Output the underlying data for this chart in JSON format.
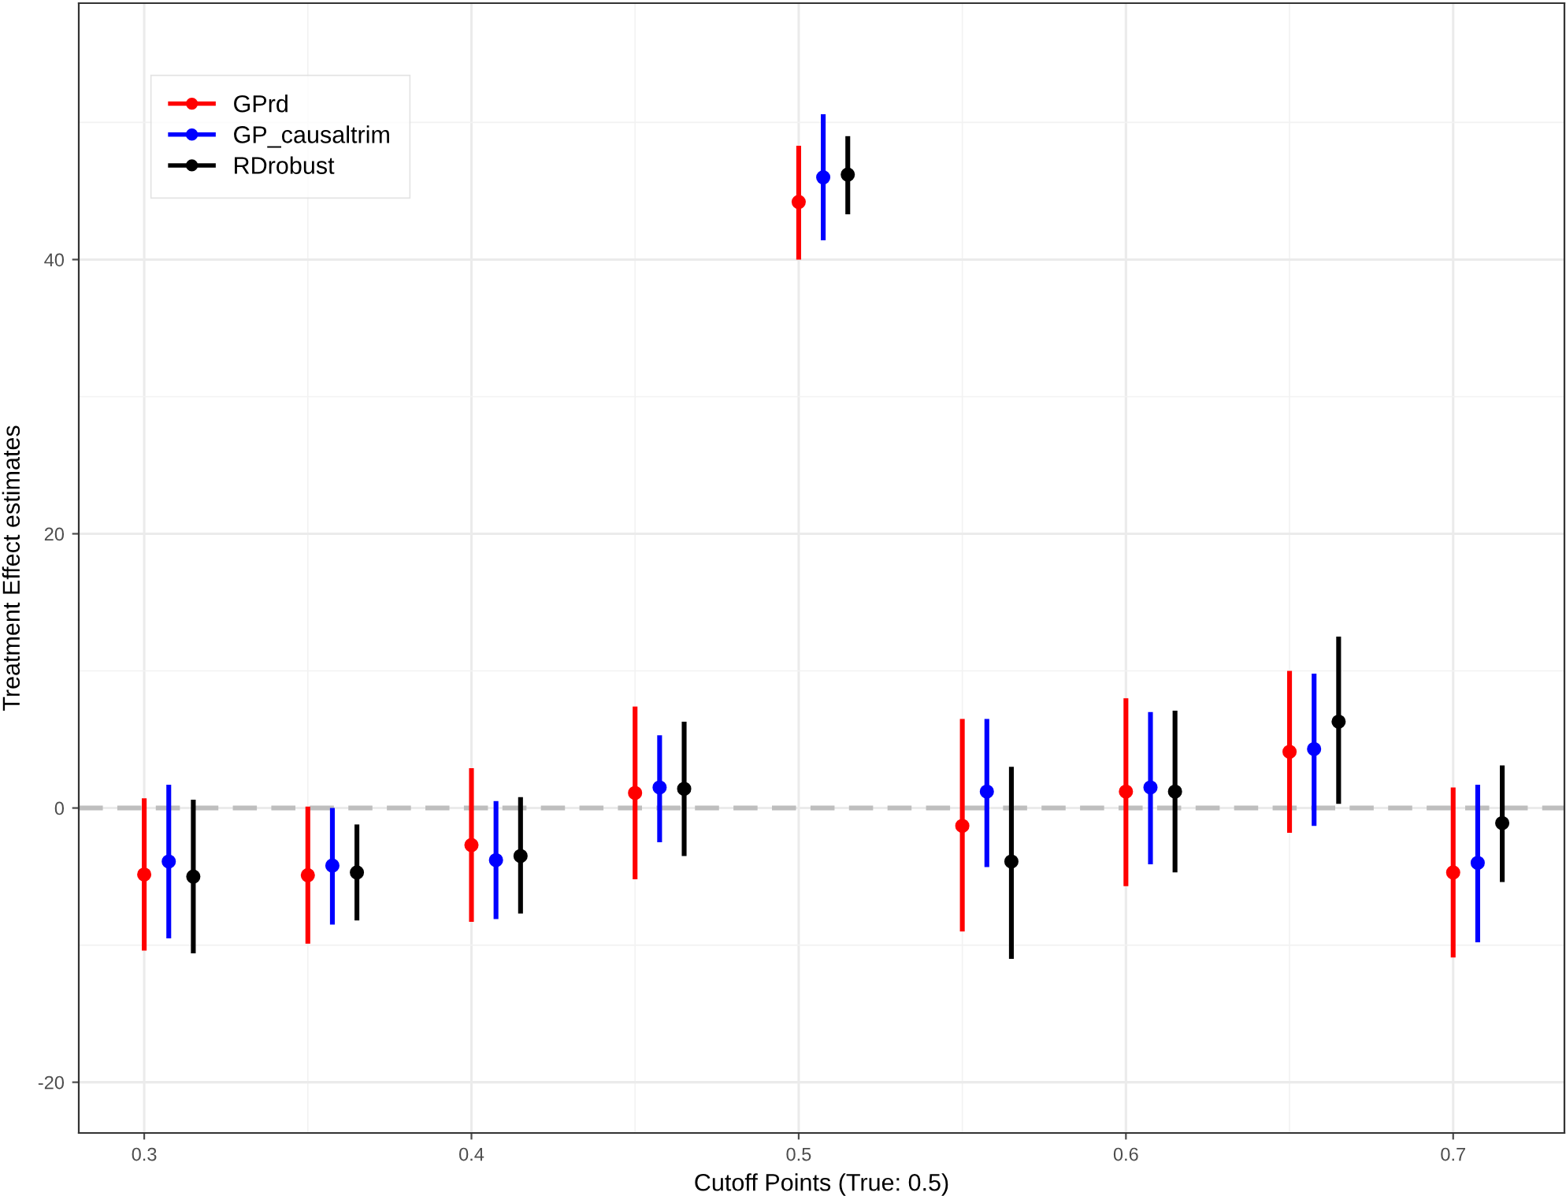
{
  "chart_data": {
    "type": "scatter",
    "xlabel": "Cutoff Points (True: 0.5)",
    "ylabel": "Treatment Effect estimates",
    "xlim": [
      0.28,
      0.734
    ],
    "ylim": [
      -23.7,
      58.7
    ],
    "xticks": [
      0.3,
      0.4,
      0.5,
      0.6,
      0.7
    ],
    "yticks": [
      -20,
      0,
      20,
      40
    ],
    "grid": true,
    "legend": "top left",
    "marker": "circle",
    "ref_lines": [
      {
        "axis": "y",
        "value": 0,
        "color": "#bebebe",
        "line_style": "dashed"
      }
    ],
    "series": [
      {
        "name": "GPrd",
        "color": "#ff0000",
        "x": [
          0.3,
          0.35,
          0.4,
          0.45,
          0.5,
          0.55,
          0.6,
          0.65,
          0.7
        ],
        "values": [
          -4.85,
          -4.9,
          -2.7,
          1.1,
          44.2,
          -1.3,
          1.2,
          4.1,
          -4.7
        ],
        "errors": [
          [
            -10.4,
            0.7
          ],
          [
            -9.9,
            0.1
          ],
          [
            -8.3,
            2.9
          ],
          [
            -5.2,
            7.4
          ],
          [
            40.0,
            48.3
          ],
          [
            -9.0,
            6.5
          ],
          [
            -5.7,
            8.0
          ],
          [
            -1.8,
            10.0
          ],
          [
            -10.9,
            1.5
          ]
        ]
      },
      {
        "name": "GP_causaltrim",
        "color": "#0000ff",
        "x": [
          0.3075,
          0.3575,
          0.4075,
          0.4575,
          0.5075,
          0.5575,
          0.6075,
          0.6575,
          0.7075
        ],
        "values": [
          -3.9,
          -4.2,
          -3.8,
          1.5,
          46.0,
          1.2,
          1.5,
          4.3,
          -4.0
        ],
        "errors": [
          [
            -9.5,
            1.7
          ],
          [
            -8.5,
            0.0
          ],
          [
            -8.1,
            0.5
          ],
          [
            -2.5,
            5.3
          ],
          [
            41.4,
            50.6
          ],
          [
            -4.3,
            6.5
          ],
          [
            -4.1,
            7.0
          ],
          [
            -1.3,
            9.8
          ],
          [
            -9.8,
            1.7
          ]
        ]
      },
      {
        "name": "RDrobust",
        "color": "#000000",
        "x": [
          0.315,
          0.365,
          0.415,
          0.465,
          0.515,
          0.565,
          0.615,
          0.665,
          0.715
        ],
        "values": [
          -5.0,
          -4.7,
          -3.5,
          1.4,
          46.2,
          -3.9,
          1.2,
          6.3,
          -1.1
        ],
        "errors": [
          [
            -10.6,
            0.6
          ],
          [
            -8.2,
            -1.2
          ],
          [
            -7.7,
            0.8
          ],
          [
            -3.5,
            6.3
          ],
          [
            43.3,
            49.0
          ],
          [
            -11.0,
            3.0
          ],
          [
            -4.7,
            7.1
          ],
          [
            0.3,
            12.5
          ],
          [
            -5.4,
            3.1
          ]
        ]
      }
    ]
  }
}
